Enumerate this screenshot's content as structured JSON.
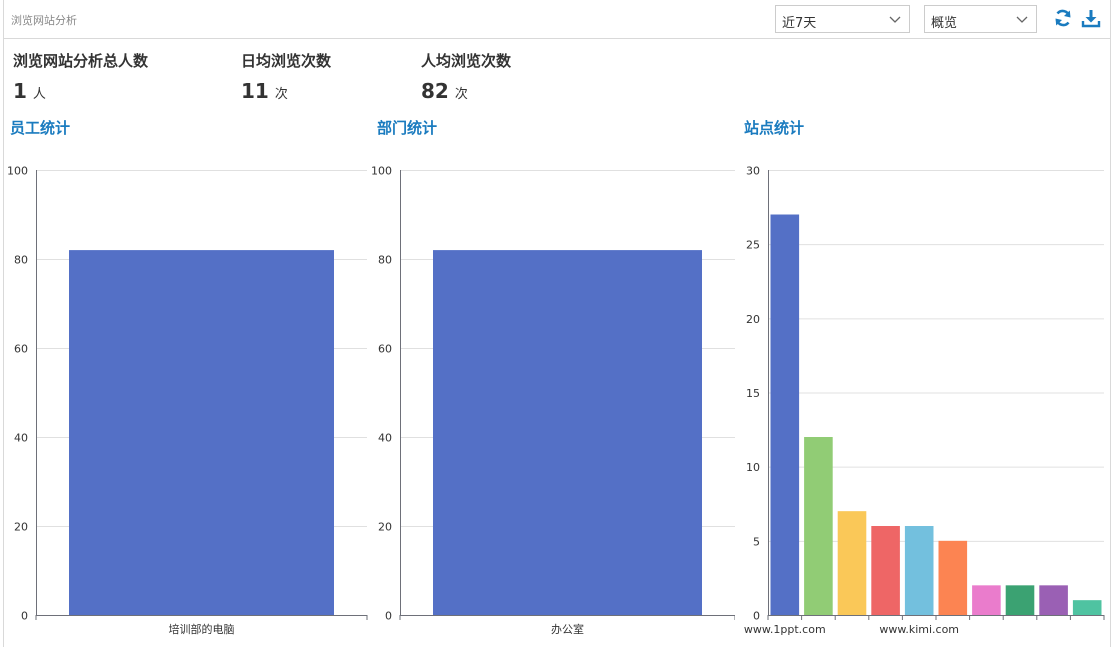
{
  "header": {
    "title": "浏览网站分析",
    "range_select": "近7天",
    "view_select": "概览"
  },
  "stats": [
    {
      "label": "浏览网站分析总人数",
      "value": "1",
      "unit": "人"
    },
    {
      "label": "日均浏览次数",
      "value": "11",
      "unit": "次"
    },
    {
      "label": "人均浏览次数",
      "value": "82",
      "unit": "次"
    }
  ],
  "sections": {
    "employee": "员工统计",
    "department": "部门统计",
    "site": "站点统计"
  },
  "colors": {
    "accent": "#1a7bbf",
    "bar": "#5470c6",
    "palette": [
      "#5470c6",
      "#91cc75",
      "#fac858",
      "#ee6666",
      "#73c0de",
      "#fc8452",
      "#ea7ccc",
      "#3ba272",
      "#9a60b4",
      "#4fc3a1"
    ]
  },
  "icons": {
    "refresh": "refresh-icon",
    "download": "download-icon",
    "chevron": "chevron-down-icon"
  },
  "chart_data": [
    {
      "type": "bar",
      "categories": [
        "培训部的电脑"
      ],
      "values": [
        82
      ],
      "ylim": [
        0,
        100
      ],
      "yticks": [
        0,
        20,
        40,
        60,
        80,
        100
      ],
      "grid": true
    },
    {
      "type": "bar",
      "categories": [
        "办公室"
      ],
      "values": [
        82
      ],
      "ylim": [
        0,
        100
      ],
      "yticks": [
        0,
        20,
        40,
        60,
        80,
        100
      ],
      "grid": true
    },
    {
      "type": "bar",
      "categories": [
        "www.1ppt.com",
        "",
        "",
        "",
        "www.kimi.com",
        "",
        "",
        "",
        "",
        ""
      ],
      "values": [
        27,
        12,
        7,
        6,
        6,
        5,
        2,
        2,
        2,
        1
      ],
      "ylim": [
        0,
        30
      ],
      "yticks": [
        0,
        5,
        10,
        15,
        20,
        25,
        30
      ],
      "grid": true
    }
  ]
}
